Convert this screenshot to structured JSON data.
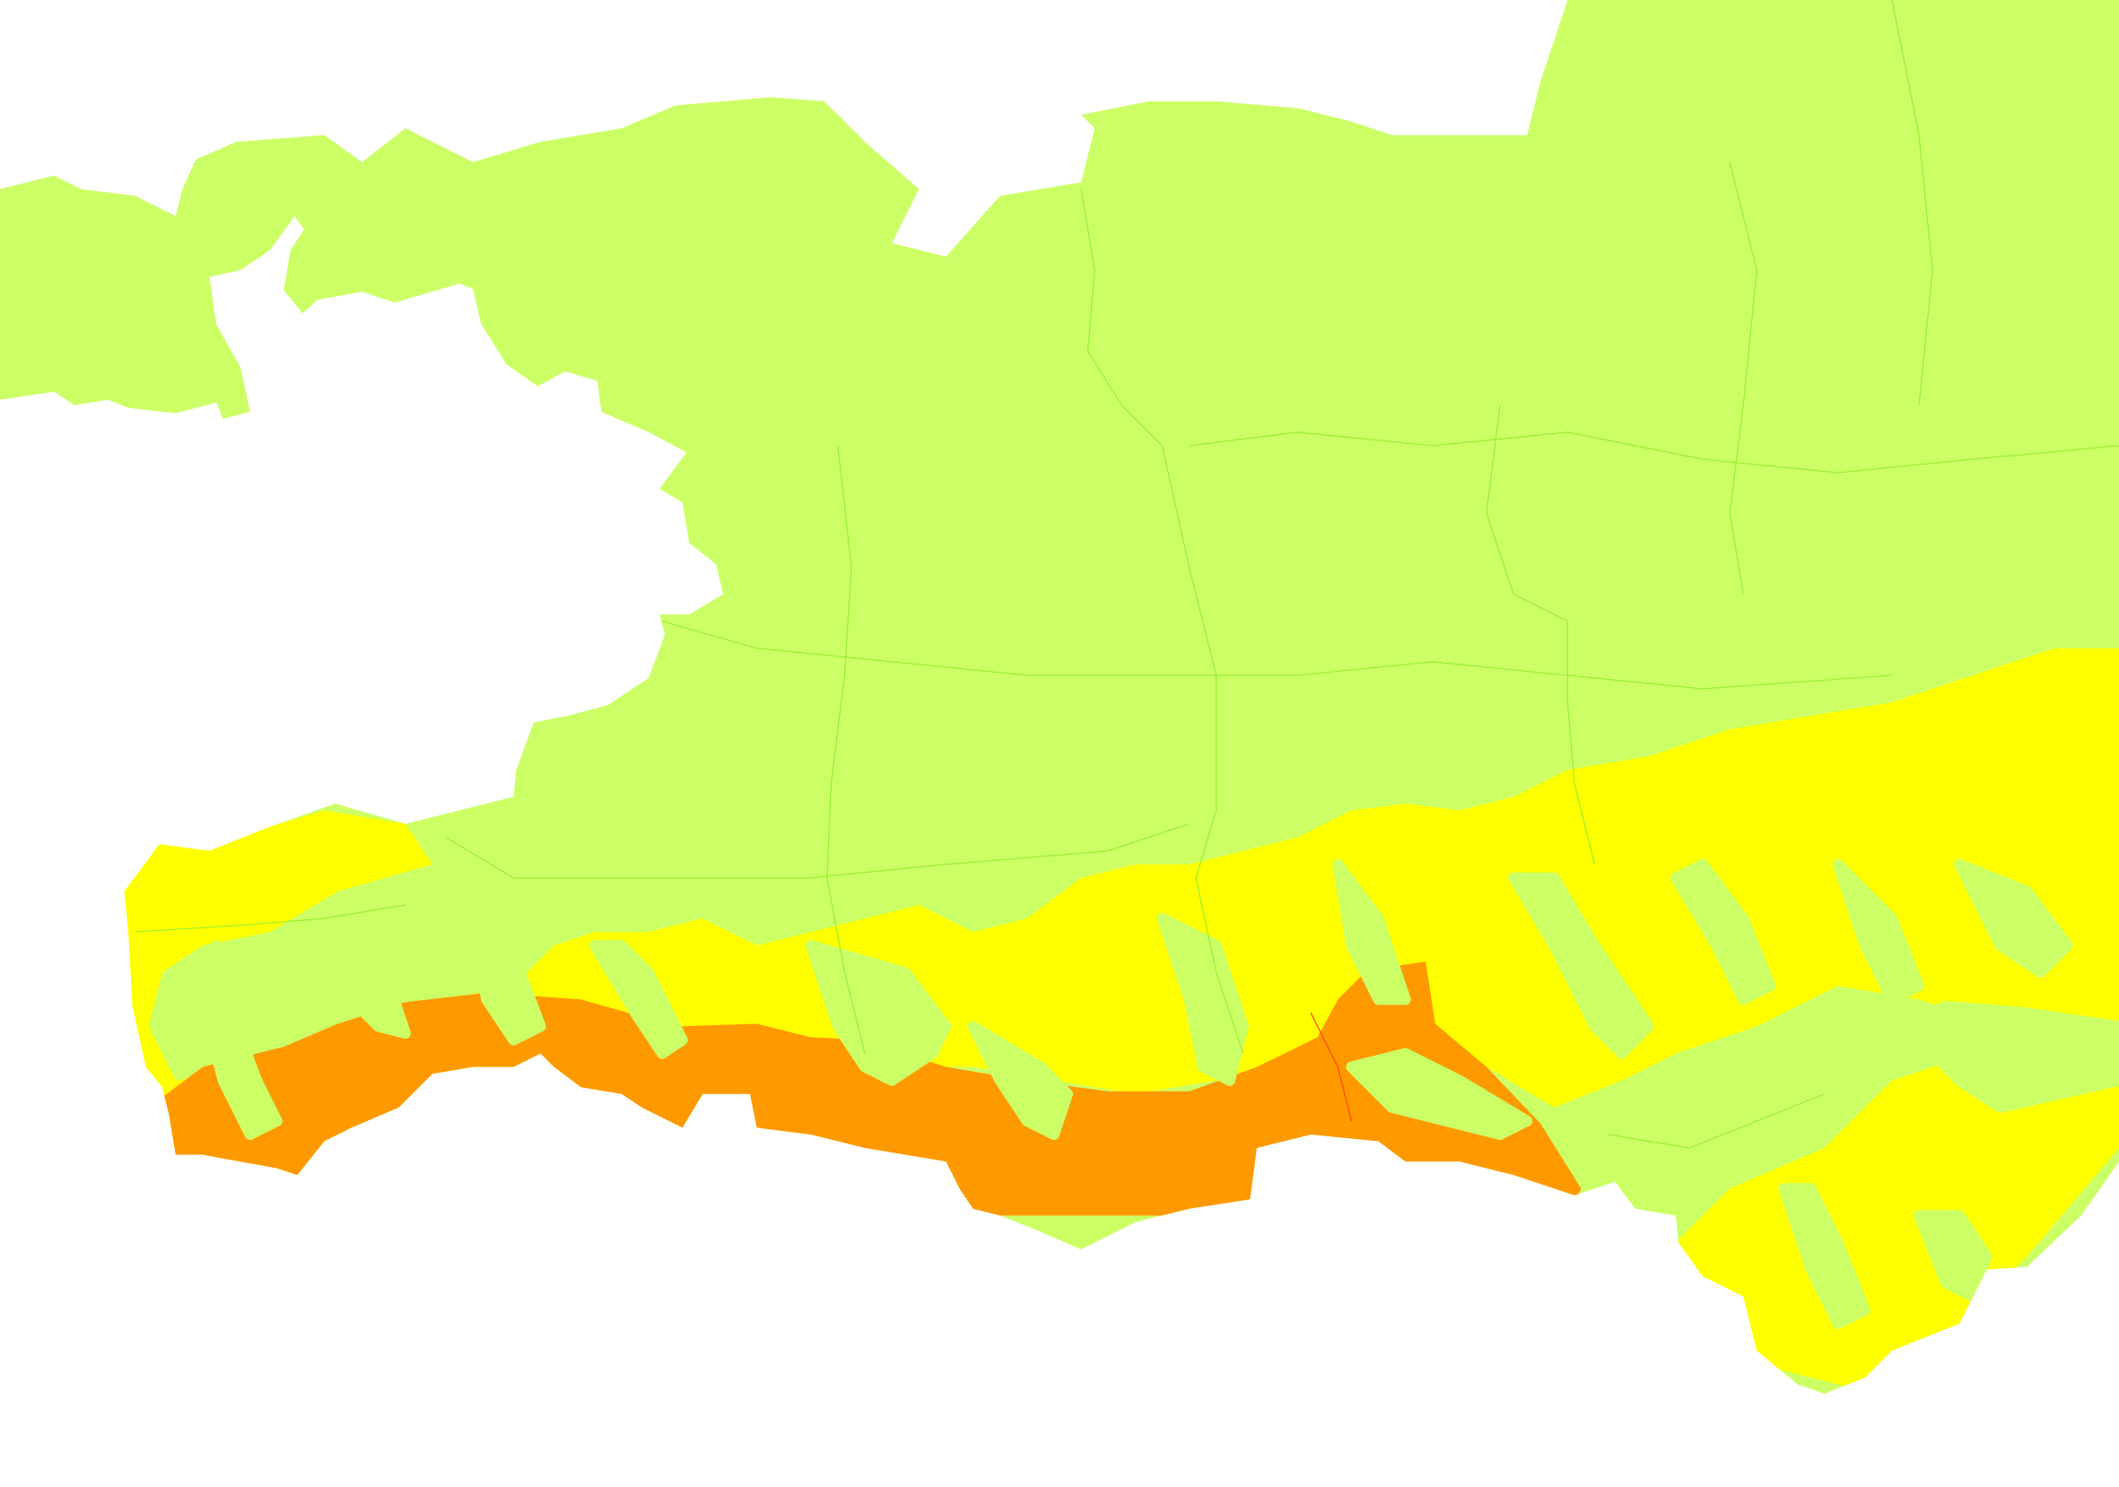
{
  "map": {
    "type": "choropleth-zones",
    "background_color": "#ffffff",
    "colors": {
      "zone_low": "#ccff66",
      "zone_medium": "#ffff00",
      "zone_high": "#ff9900",
      "boundary_line": "#99ee33",
      "boundary_line_high": "#ff4400"
    },
    "legend": null
  }
}
